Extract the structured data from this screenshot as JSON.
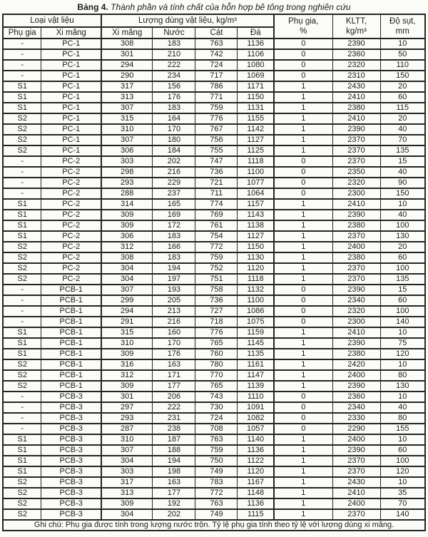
{
  "title": {
    "label": "Bảng 4.",
    "caption": "Thành phần và tính chất của hỗn hợp bê tông trong nghiên cứu"
  },
  "table": {
    "header": {
      "group_material": "Loại vật liệu",
      "group_amount": "Lượng dùng vật liệu, kg/m³",
      "col_additive_type": "Phụ gia",
      "col_cement_type": "Xi măng",
      "col_cement": "Xi măng",
      "col_water": "Nước",
      "col_sand": "Cát",
      "col_stone": "Đá",
      "additive_pct_line1": "Phụ gia,",
      "additive_pct_line2": "%",
      "kltt_line1": "KLTT,",
      "kltt_line2": "kg/m³",
      "slump_line1": "Độ sụt,",
      "slump_line2": "mm"
    },
    "column_keys": [
      "additive",
      "cement-type",
      "cement",
      "water",
      "sand",
      "stone",
      "additive-pct",
      "kltt",
      "slump"
    ],
    "rows": [
      [
        "-",
        "PC-1",
        "308",
        "183",
        "763",
        "1136",
        "0",
        "2390",
        "10"
      ],
      [
        "-",
        "PC-1",
        "301",
        "210",
        "742",
        "1106",
        "0",
        "2360",
        "50"
      ],
      [
        "-",
        "PC-1",
        "294",
        "222",
        "724",
        "1080",
        "0",
        "2320",
        "110"
      ],
      [
        "-",
        "PC-1",
        "290",
        "234",
        "717",
        "1069",
        "0",
        "2310",
        "150"
      ],
      [
        "S1",
        "PC-1",
        "317",
        "156",
        "786",
        "1171",
        "1",
        "2430",
        "20"
      ],
      [
        "S1",
        "PC-1",
        "313",
        "176",
        "771",
        "1150",
        "1",
        "2410",
        "60"
      ],
      [
        "S1",
        "PC-1",
        "307",
        "183",
        "759",
        "1131",
        "1",
        "2380",
        "115"
      ],
      [
        "S2",
        "PC-1",
        "315",
        "164",
        "776",
        "1155",
        "1",
        "2410",
        "20"
      ],
      [
        "S2",
        "PC-1",
        "310",
        "170",
        "767",
        "1142",
        "1",
        "2390",
        "40"
      ],
      [
        "S2",
        "PC-1",
        "307",
        "180",
        "756",
        "1127",
        "1",
        "2370",
        "70"
      ],
      [
        "S2",
        "PC-1",
        "306",
        "184",
        "755",
        "1125",
        "1",
        "2370",
        "135"
      ],
      [
        "-",
        "PC-2",
        "303",
        "202",
        "747",
        "1118",
        "0",
        "2370",
        "15"
      ],
      [
        "-",
        "PC-2",
        "298",
        "216",
        "736",
        "1100",
        "0",
        "2350",
        "40"
      ],
      [
        "-",
        "PC-2",
        "293",
        "229",
        "721",
        "1077",
        "0",
        "2320",
        "90"
      ],
      [
        "-",
        "PC-2",
        "288",
        "237",
        "711",
        "1064",
        "0",
        "2300",
        "150"
      ],
      [
        "S1",
        "PC-2",
        "314",
        "165",
        "774",
        "1157",
        "1",
        "2410",
        "10"
      ],
      [
        "S1",
        "PC-2",
        "309",
        "169",
        "769",
        "1143",
        "1",
        "2390",
        "40"
      ],
      [
        "S1",
        "PC-2",
        "309",
        "172",
        "761",
        "1138",
        "1",
        "2380",
        "100"
      ],
      [
        "S1",
        "PC-2",
        "306",
        "183",
        "754",
        "1127",
        "1",
        "2370",
        "130"
      ],
      [
        "S2",
        "PC-2",
        "312",
        "166",
        "772",
        "1150",
        "1",
        "2400",
        "20"
      ],
      [
        "S2",
        "PC-2",
        "308",
        "183",
        "759",
        "1130",
        "1",
        "2380",
        "60"
      ],
      [
        "S2",
        "PC-2",
        "304",
        "194",
        "752",
        "1120",
        "1",
        "2370",
        "100"
      ],
      [
        "S2",
        "PC-2",
        "304",
        "197",
        "751",
        "1118",
        "1",
        "2370",
        "135"
      ],
      [
        "-",
        "PCB-1",
        "307",
        "193",
        "758",
        "1132",
        "0",
        "2390",
        "15"
      ],
      [
        "-",
        "PCB-1",
        "299",
        "205",
        "736",
        "1100",
        "0",
        "2340",
        "60"
      ],
      [
        "-",
        "PCB-1",
        "294",
        "213",
        "727",
        "1086",
        "0",
        "2320",
        "100"
      ],
      [
        "-",
        "PCB-1",
        "291",
        "216",
        "718",
        "1075",
        "0",
        "2300",
        "140"
      ],
      [
        "S1",
        "PCB-1",
        "315",
        "160",
        "776",
        "1159",
        "1",
        "2410",
        "10"
      ],
      [
        "S1",
        "PCB-1",
        "310",
        "170",
        "765",
        "1145",
        "1",
        "2390",
        "75"
      ],
      [
        "S1",
        "PCB-1",
        "309",
        "176",
        "760",
        "1135",
        "1",
        "2380",
        "120"
      ],
      [
        "S2",
        "PCB-1",
        "316",
        "163",
        "780",
        "1161",
        "1",
        "2420",
        "10"
      ],
      [
        "S2",
        "PCB-1",
        "312",
        "171",
        "770",
        "1147",
        "1",
        "2400",
        "80"
      ],
      [
        "S2",
        "PCB-1",
        "309",
        "177",
        "765",
        "1139",
        "1",
        "2390",
        "130"
      ],
      [
        "-",
        "PCB-3",
        "301",
        "206",
        "743",
        "1110",
        "0",
        "2360",
        "10"
      ],
      [
        "-",
        "PCB-3",
        "297",
        "222",
        "730",
        "1091",
        "0",
        "2340",
        "40"
      ],
      [
        "-",
        "PCB-3",
        "293",
        "231",
        "724",
        "1082",
        "0",
        "2330",
        "80"
      ],
      [
        "-",
        "PCB-3",
        "287",
        "238",
        "708",
        "1057",
        "0",
        "2290",
        "155"
      ],
      [
        "S1",
        "PCB-3",
        "310",
        "187",
        "763",
        "1140",
        "1",
        "2400",
        "10"
      ],
      [
        "S1",
        "PCB-3",
        "307",
        "188",
        "759",
        "1136",
        "1",
        "2390",
        "60"
      ],
      [
        "S1",
        "PCB-3",
        "304",
        "194",
        "750",
        "1122",
        "1",
        "2370",
        "100"
      ],
      [
        "S1",
        "PCB-3",
        "303",
        "198",
        "749",
        "1120",
        "1",
        "2370",
        "120"
      ],
      [
        "S2",
        "PCB-3",
        "317",
        "163",
        "783",
        "1167",
        "1",
        "2430",
        "10"
      ],
      [
        "S2",
        "PCB-3",
        "313",
        "177",
        "772",
        "1148",
        "1",
        "2410",
        "35"
      ],
      [
        "S2",
        "PCB-3",
        "309",
        "192",
        "763",
        "1136",
        "1",
        "2400",
        "70"
      ],
      [
        "S2",
        "PCB-3",
        "304",
        "202",
        "749",
        "1115",
        "1",
        "2370",
        "140"
      ]
    ],
    "note": "Ghi chú: Phụ gia được tính trong lượng nước trộn. Tỷ lệ phụ gia tính theo tỷ lệ với lượng dùng xi măng."
  }
}
